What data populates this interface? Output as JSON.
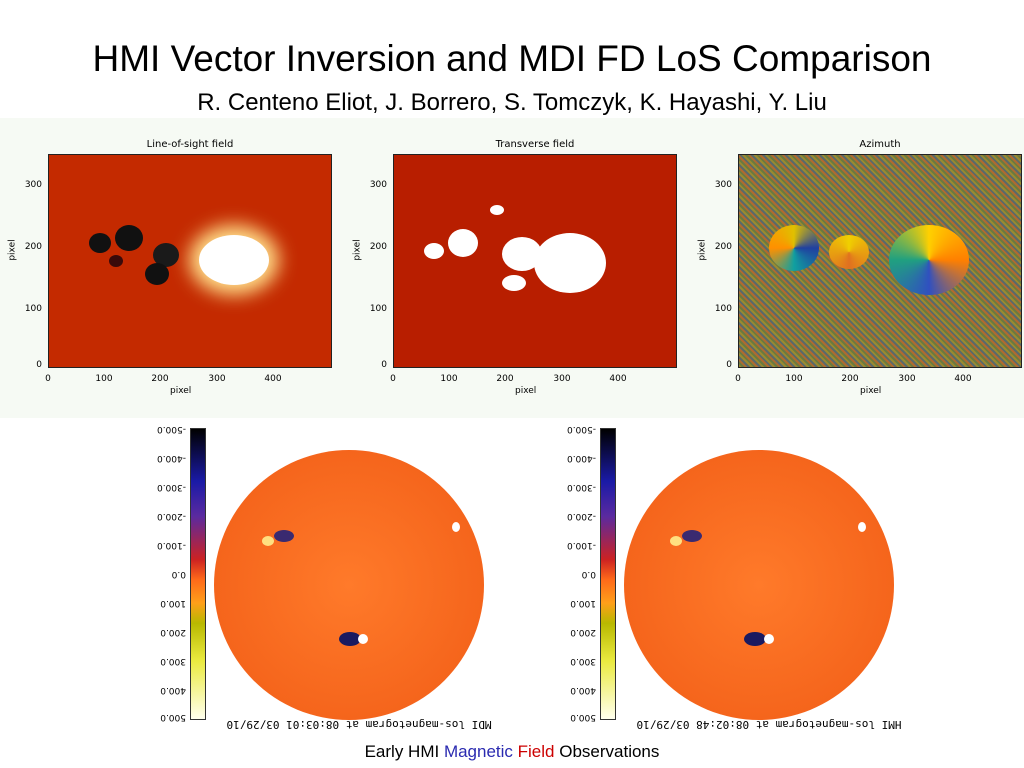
{
  "title": "HMI Vector Inversion and MDI FD LoS Comparison",
  "authors": "R. Centeno Eliot, J. Borrero, S. Tomczyk, K. Hayashi, Y. Liu",
  "panels": [
    {
      "title": "Line-of-sight field",
      "xlabel": "pixel",
      "ylabel": "pixel",
      "yticks": [
        "300",
        "200",
        "100",
        "0"
      ],
      "xticks": [
        "0",
        "100",
        "200",
        "300",
        "400"
      ]
    },
    {
      "title": "Transverse field",
      "xlabel": "pixel",
      "ylabel": "pixel",
      "yticks": [
        "300",
        "200",
        "100",
        "0"
      ],
      "xticks": [
        "0",
        "100",
        "200",
        "300",
        "400"
      ]
    },
    {
      "title": "Azimuth",
      "xlabel": "pixel",
      "ylabel": "pixel",
      "yticks": [
        "300",
        "200",
        "100",
        "0"
      ],
      "xticks": [
        "0",
        "100",
        "200",
        "300",
        "400"
      ]
    }
  ],
  "magnetograms": [
    {
      "caption": "MDI los-magnetogram at 08:03:01 03/29/10",
      "scale": [
        "-500.0",
        "-400.0",
        "-300.0",
        "-200.0",
        "-100.0",
        "0.0",
        "100.0",
        "200.0",
        "300.0",
        "400.0",
        "500.0"
      ]
    },
    {
      "caption": "HMI los-magnetogram at 08:02:48 03/29/10",
      "scale": [
        "-500.0",
        "-400.0",
        "-300.0",
        "-200.0",
        "-100.0",
        "0.0",
        "100.0",
        "200.0",
        "300.0",
        "400.0",
        "500.0"
      ]
    }
  ],
  "footer": {
    "part1": "Early HMI ",
    "part2": "Magnetic",
    "part3": " Field",
    "part4": " Observations"
  },
  "colors": {
    "los_bg": "#c42a00",
    "transverse_bg": "#b81e00",
    "disk": "#f5651c",
    "magnetic": "#2a2ab0",
    "field": "#cc0000"
  }
}
